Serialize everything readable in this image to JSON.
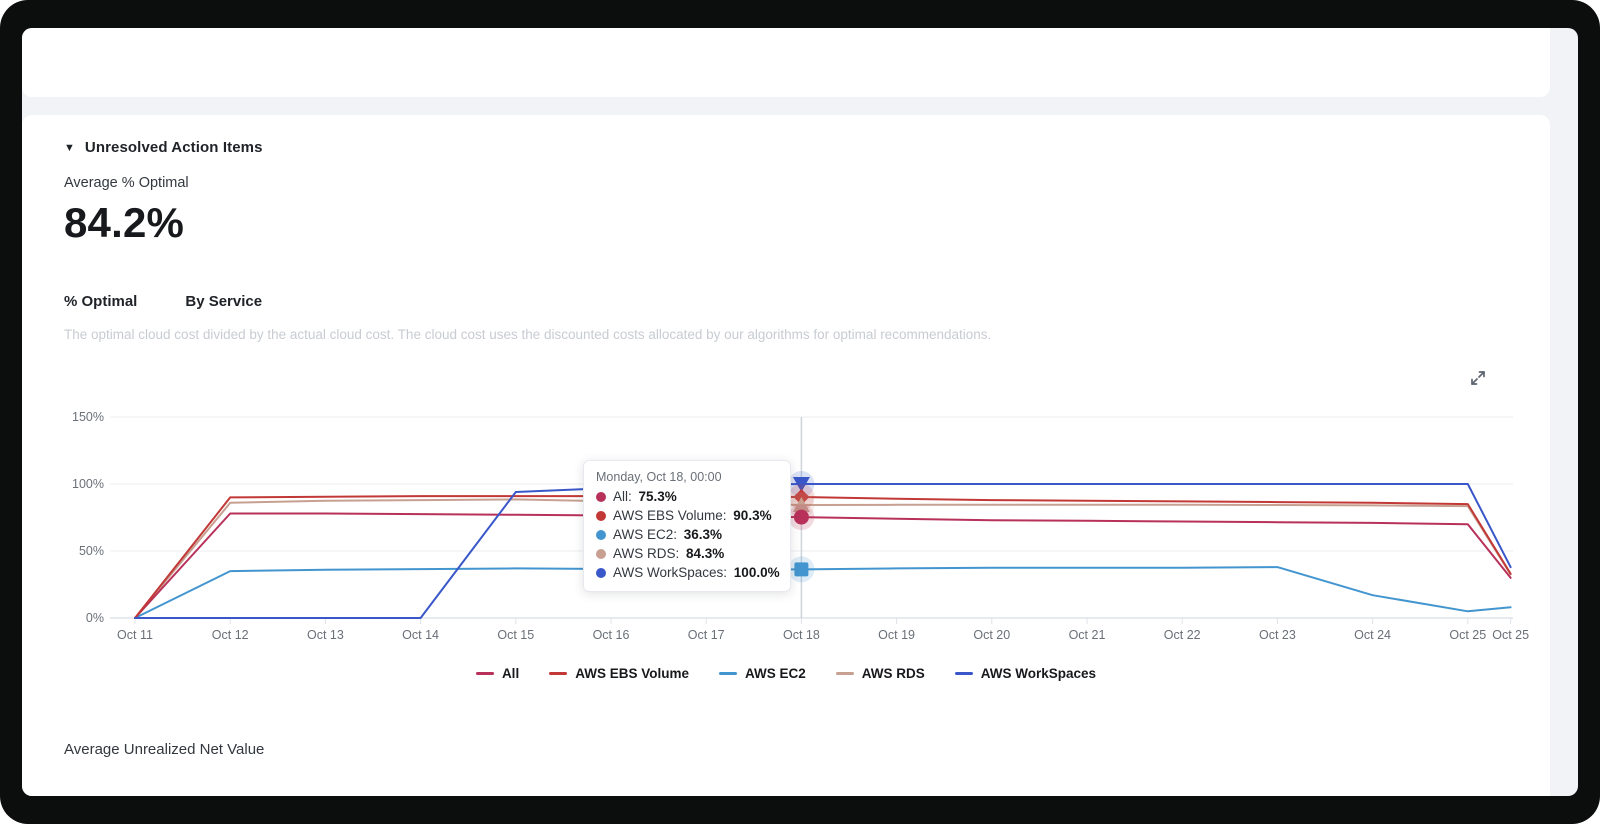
{
  "page": {
    "collapse_icon": "▼",
    "section_title": "Unresolved Action Items",
    "metric_label": "Average % Optimal",
    "metric_value": "84.2%",
    "tabs": [
      {
        "label": "% Optimal"
      },
      {
        "label": "By Service"
      }
    ],
    "description": "The optimal cloud cost divided by the actual cloud cost. The cloud cost uses the discounted costs allocated by our algorithms for optimal recommendations.",
    "next_section_title": "Average Unrealized Net Value"
  },
  "tooltip": {
    "title": "Monday, Oct 18, 00:00",
    "rows": [
      {
        "label": "All",
        "value": "75.3%",
        "color": "#b8315a"
      },
      {
        "label": "AWS EBS Volume",
        "value": "90.3%",
        "color": "#c23836"
      },
      {
        "label": "AWS EC2",
        "value": "36.3%",
        "color": "#4395cf"
      },
      {
        "label": "AWS RDS",
        "value": "84.3%",
        "color": "#c7a091"
      },
      {
        "label": "AWS WorkSpaces",
        "value": "100.0%",
        "color": "#3a57c9"
      }
    ]
  },
  "chart_data": {
    "type": "line",
    "title": "% Optimal over time",
    "x_labels": [
      "Oct 11",
      "Oct 12",
      "Oct 13",
      "Oct 14",
      "Oct 15",
      "Oct 16",
      "Oct 17",
      "Oct 18",
      "Oct 19",
      "Oct 20",
      "Oct 21",
      "Oct 22",
      "Oct 23",
      "Oct 24",
      "Oct 25",
      "Oct 25"
    ],
    "x_day_offsets": [
      0,
      1,
      2,
      3,
      4,
      5,
      6,
      7,
      8,
      9,
      10,
      11,
      12,
      13,
      14,
      14.45
    ],
    "y_ticks": [
      0,
      50,
      100,
      150
    ],
    "y_tick_labels": [
      "0%",
      "50%",
      "100%",
      "150%"
    ],
    "ylim": [
      0,
      150
    ],
    "grid": true,
    "legend_position": "bottom",
    "highlight_index": 7,
    "highlight_label": "Monday, Oct 18, 00:00",
    "series": [
      {
        "name": "All",
        "color": "#b8315a",
        "marker": "circle",
        "values": [
          0,
          78,
          78,
          77.5,
          77,
          76.5,
          76,
          75.3,
          74,
          73,
          72.5,
          72,
          71.5,
          71,
          70,
          30
        ]
      },
      {
        "name": "AWS EBS Volume",
        "color": "#c23836",
        "marker": "diamond",
        "values": [
          0,
          90,
          90.5,
          91,
          91,
          91,
          90.6,
          90.3,
          89,
          88,
          87.5,
          87,
          86.5,
          86,
          85,
          33
        ]
      },
      {
        "name": "AWS EC2",
        "color": "#4395cf",
        "marker": "square",
        "values": [
          0,
          35,
          36,
          36.5,
          37,
          36.6,
          36.4,
          36.3,
          37,
          37.5,
          37.5,
          37.5,
          38,
          17,
          5,
          8
        ]
      },
      {
        "name": "AWS RDS",
        "color": "#c7a091",
        "marker": "triangle-up",
        "values": [
          0,
          86,
          87.5,
          88,
          88.5,
          87,
          85.5,
          84.3,
          84.5,
          84.5,
          84.5,
          84.5,
          84.3,
          84,
          83.5,
          32.5
        ]
      },
      {
        "name": "AWS WorkSpaces",
        "color": "#3a57c9",
        "marker": "triangle-down",
        "values": [
          0,
          0,
          0,
          0,
          94,
          97,
          99,
          100,
          100,
          100,
          100,
          100,
          100,
          100,
          100,
          38
        ]
      }
    ],
    "colors": {
      "gridline": "#eceef2",
      "axis_line": "#dfe3ea",
      "crosshair": "#ced3da",
      "axis_text": "#6a7078"
    }
  }
}
